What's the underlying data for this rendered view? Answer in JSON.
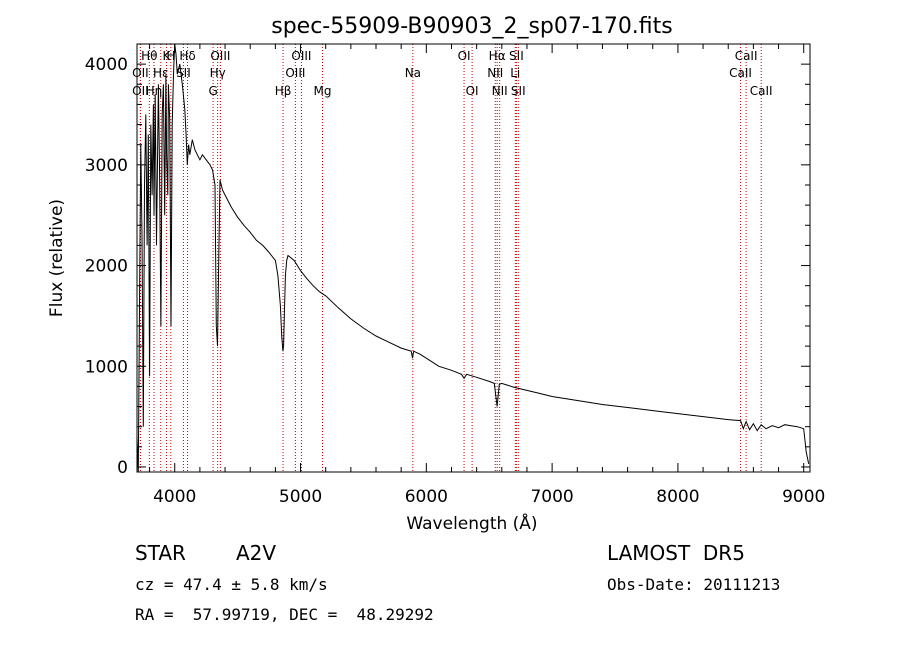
{
  "chart_data": {
    "type": "line",
    "title": "spec-55909-B90903_2_sp07-170.fits",
    "xlabel": "Wavelength (Å)",
    "ylabel": "Flux (relative)",
    "xlim": [
      3700,
      9050
    ],
    "ylim": [
      -50,
      4200
    ],
    "x_ticks": [
      4000,
      5000,
      6000,
      7000,
      8000,
      9000
    ],
    "y_ticks": [
      0,
      1000,
      2000,
      3000,
      4000
    ],
    "grid": false,
    "series": [
      {
        "x": [
          3700,
          3710,
          3720,
          3730,
          3740,
          3750,
          3760,
          3770,
          3780,
          3790,
          3800,
          3810,
          3820,
          3830,
          3835,
          3845,
          3855,
          3870,
          3880,
          3890,
          3900,
          3910,
          3920,
          3930,
          3935,
          3945,
          3950,
          3960,
          3970,
          3980,
          3990,
          4000,
          4010,
          4020,
          4040,
          4060,
          4080,
          4090,
          4100,
          4110,
          4120,
          4140,
          4160,
          4180,
          4200,
          4220,
          4250,
          4280,
          4300,
          4320,
          4330,
          4340,
          4350,
          4360,
          4380,
          4400,
          4450,
          4500,
          4550,
          4600,
          4650,
          4700,
          4750,
          4800,
          4820,
          4840,
          4850,
          4860,
          4865,
          4870,
          4880,
          4890,
          4900,
          4950,
          5000,
          5050,
          5100,
          5150,
          5200,
          5300,
          5400,
          5500,
          5600,
          5700,
          5800,
          5880,
          5890,
          5900,
          5950,
          6000,
          6100,
          6200,
          6280,
          6300,
          6320,
          6400,
          6500,
          6540,
          6563,
          6580,
          6600,
          6700,
          6800,
          6900,
          7000,
          7200,
          7400,
          7600,
          7800,
          8000,
          8200,
          8400,
          8498,
          8520,
          8542,
          8570,
          8600,
          8630,
          8662,
          8700,
          8750,
          8800,
          8850,
          8900,
          8950,
          9000,
          9020,
          9040
        ],
        "y": [
          300,
          -50,
          1600,
          3200,
          2300,
          400,
          2800,
          3500,
          2200,
          3300,
          900,
          3400,
          2700,
          3600,
          2500,
          3700,
          2200,
          3800,
          2900,
          1400,
          3500,
          3800,
          2500,
          3900,
          3100,
          2700,
          3800,
          3450,
          1400,
          3400,
          3900,
          4200,
          4100,
          3900,
          4000,
          3800,
          3550,
          3300,
          3000,
          3200,
          3100,
          3250,
          3150,
          3100,
          3050,
          3100,
          3050,
          3000,
          2950,
          2800,
          1400,
          1200,
          2100,
          2850,
          2750,
          2700,
          2580,
          2480,
          2400,
          2330,
          2250,
          2200,
          2130,
          2050,
          1900,
          1600,
          1300,
          1150,
          1200,
          1450,
          1900,
          2050,
          2100,
          2050,
          1950,
          1870,
          1800,
          1740,
          1700,
          1580,
          1470,
          1380,
          1300,
          1240,
          1180,
          1150,
          1080,
          1150,
          1120,
          1080,
          1000,
          960,
          920,
          880,
          920,
          890,
          850,
          830,
          600,
          820,
          830,
          790,
          760,
          730,
          700,
          660,
          620,
          590,
          560,
          530,
          500,
          470,
          460,
          380,
          450,
          370,
          430,
          360,
          420,
          380,
          410,
          390,
          420,
          410,
          400,
          380,
          150,
          30
        ]
      }
    ],
    "lines": [
      {
        "name": "Hθ",
        "x": 3798,
        "row": 1
      },
      {
        "name": "OII",
        "x": 3727,
        "row": 2
      },
      {
        "name": "OII",
        "x": 3727,
        "row": 3
      },
      {
        "name": "Hη",
        "x": 3835,
        "row": 3
      },
      {
        "name": "Hε",
        "x": 3889,
        "row": 2
      },
      {
        "name": "K",
        "x": 3934,
        "row": 1
      },
      {
        "name": "H",
        "x": 3969,
        "row": 1
      },
      {
        "name": "SII",
        "x": 4069,
        "row": 2
      },
      {
        "name": "Hδ",
        "x": 4102,
        "row": 1
      },
      {
        "name": "OIII",
        "x": 4363,
        "row": 1
      },
      {
        "name": "Hγ",
        "x": 4341,
        "row": 2
      },
      {
        "name": "G",
        "x": 4305,
        "row": 3
      },
      {
        "name": "Hβ",
        "x": 4861,
        "row": 3
      },
      {
        "name": "OIII",
        "x": 5007,
        "row": 1
      },
      {
        "name": "OIII",
        "x": 4959,
        "row": 2
      },
      {
        "name": "Mg",
        "x": 5175,
        "row": 3
      },
      {
        "name": "Na",
        "x": 5893,
        "row": 2
      },
      {
        "name": "OI",
        "x": 6300,
        "row": 1
      },
      {
        "name": "OI",
        "x": 6364,
        "row": 3
      },
      {
        "name": "Hα",
        "x": 6563,
        "row": 1
      },
      {
        "name": "NII",
        "x": 6548,
        "row": 2
      },
      {
        "name": "NII",
        "x": 6583,
        "row": 3
      },
      {
        "name": "SII",
        "x": 6716,
        "row": 1
      },
      {
        "name": "Li",
        "x": 6707,
        "row": 2
      },
      {
        "name": "SII",
        "x": 6731,
        "row": 3
      },
      {
        "name": "CaII",
        "x": 8542,
        "row": 1
      },
      {
        "name": "CaII",
        "x": 8498,
        "row": 2
      },
      {
        "name": "CaII",
        "x": 8662,
        "row": 3
      }
    ]
  },
  "info": {
    "object_class": "STAR",
    "subclass": "A2V",
    "survey": "LAMOST  DR5",
    "cz": "cz = 47.4 ± 5.8 km/s",
    "obs_date": "Obs-Date: 20111213",
    "coords": "RA =  57.99719, DEC =  48.29292"
  },
  "colors": {
    "spectrum": "#000000",
    "line_markers": "#c00000",
    "axes": "#000000"
  }
}
